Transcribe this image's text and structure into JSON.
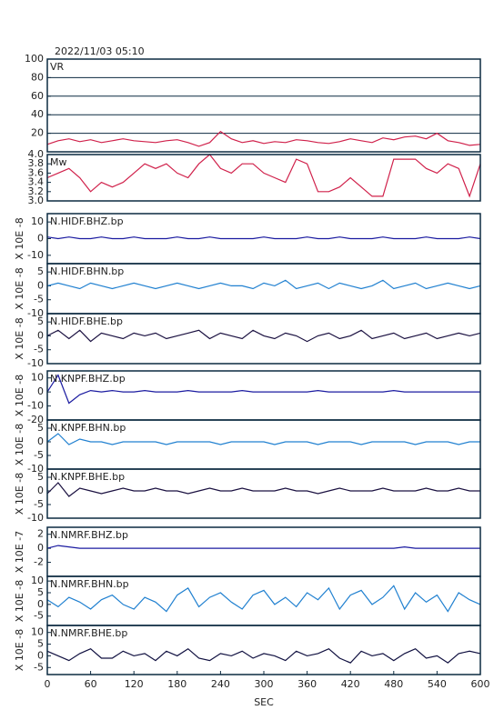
{
  "title": "2022/11/03 05:10",
  "chart_data": [
    {
      "type": "line",
      "title": "VR",
      "xlim": [
        0,
        600
      ],
      "ylim": [
        0,
        100
      ],
      "yticks": [
        20,
        40,
        60,
        80,
        100
      ],
      "grid": true,
      "x": [
        0,
        15,
        30,
        45,
        60,
        75,
        90,
        105,
        120,
        135,
        150,
        165,
        180,
        195,
        210,
        225,
        240,
        255,
        270,
        285,
        300,
        315,
        330,
        345,
        360,
        375,
        390,
        405,
        420,
        435,
        450,
        465,
        480,
        495,
        510,
        525,
        540,
        555,
        570,
        585,
        600
      ],
      "series": [
        {
          "color": "#d0204a",
          "values": [
            8,
            12,
            14,
            11,
            13,
            10,
            12,
            14,
            12,
            11,
            10,
            12,
            13,
            10,
            6,
            10,
            22,
            14,
            10,
            12,
            9,
            11,
            10,
            13,
            12,
            10,
            9,
            11,
            14,
            12,
            10,
            15,
            13,
            16,
            17,
            14,
            20,
            12,
            10,
            7,
            8
          ]
        }
      ]
    },
    {
      "type": "line",
      "title": "Mw",
      "xlim": [
        0,
        600
      ],
      "ylim": [
        3,
        4
      ],
      "yticks": [
        {
          "value": 3,
          "label": "3.0"
        },
        3.2,
        3.4,
        3.6,
        3.8,
        {
          "value": 4,
          "label": "4.0"
        }
      ],
      "grid": false,
      "x": [
        0,
        15,
        30,
        45,
        60,
        75,
        90,
        105,
        120,
        135,
        150,
        165,
        180,
        195,
        210,
        225,
        240,
        255,
        270,
        285,
        300,
        315,
        330,
        345,
        360,
        375,
        390,
        405,
        420,
        435,
        450,
        465,
        480,
        495,
        510,
        525,
        540,
        555,
        570,
        585,
        600
      ],
      "series": [
        {
          "color": "#d0204a",
          "values": [
            3.5,
            3.6,
            3.7,
            3.5,
            3.2,
            3.4,
            3.3,
            3.4,
            3.6,
            3.8,
            3.7,
            3.8,
            3.6,
            3.5,
            3.8,
            4.0,
            3.7,
            3.6,
            3.8,
            3.8,
            3.6,
            3.5,
            3.4,
            3.9,
            3.8,
            3.2,
            3.2,
            3.3,
            3.5,
            3.3,
            3.1,
            3.1,
            3.9,
            3.9,
            3.9,
            3.7,
            3.6,
            3.8,
            3.7,
            3.1,
            3.8
          ]
        }
      ]
    },
    {
      "type": "line",
      "title": "N.HIDF.BHZ.bp",
      "ylabel": "X 10E -8",
      "xlim": [
        0,
        600
      ],
      "ylim": [
        -15,
        15
      ],
      "yticks": [
        -10,
        0,
        10
      ],
      "grid": false,
      "x": [
        0,
        15,
        30,
        45,
        60,
        75,
        90,
        105,
        120,
        135,
        150,
        165,
        180,
        195,
        210,
        225,
        240,
        255,
        270,
        285,
        300,
        315,
        330,
        345,
        360,
        375,
        390,
        405,
        420,
        435,
        450,
        465,
        480,
        495,
        510,
        525,
        540,
        555,
        570,
        585,
        600
      ],
      "series": [
        {
          "color": "#1a1aa0",
          "values": [
            1,
            0,
            1,
            0,
            0,
            1,
            0,
            0,
            1,
            0,
            0,
            0,
            1,
            0,
            0,
            1,
            0,
            0,
            0,
            0,
            1,
            0,
            0,
            0,
            1,
            0,
            0,
            1,
            0,
            0,
            0,
            1,
            0,
            0,
            0,
            1,
            0,
            0,
            0,
            1,
            0
          ]
        }
      ]
    },
    {
      "type": "line",
      "title": "N.HIDF.BHN.bp",
      "ylabel": "X 10E -8",
      "xlim": [
        0,
        600
      ],
      "ylim": [
        -10,
        8
      ],
      "yticks": [
        -10,
        -5,
        0,
        5
      ],
      "grid": false,
      "x": [
        0,
        15,
        30,
        45,
        60,
        75,
        90,
        105,
        120,
        135,
        150,
        165,
        180,
        195,
        210,
        225,
        240,
        255,
        270,
        285,
        300,
        315,
        330,
        345,
        360,
        375,
        390,
        405,
        420,
        435,
        450,
        465,
        480,
        495,
        510,
        525,
        540,
        555,
        570,
        585,
        600
      ],
      "series": [
        {
          "color": "#2080d0",
          "values": [
            0,
            1,
            0,
            -1,
            1,
            0,
            -1,
            0,
            1,
            0,
            -1,
            0,
            1,
            0,
            -1,
            0,
            1,
            0,
            0,
            -1,
            1,
            0,
            2,
            -1,
            0,
            1,
            -1,
            1,
            0,
            -1,
            0,
            2,
            -1,
            0,
            1,
            -1,
            0,
            1,
            0,
            -1,
            0
          ]
        }
      ]
    },
    {
      "type": "line",
      "title": "N.HIDF.BHE.bp",
      "ylabel": "X 10E -8",
      "xlim": [
        0,
        600
      ],
      "ylim": [
        -10,
        8
      ],
      "yticks": [
        -10,
        -5,
        0,
        5
      ],
      "grid": false,
      "x": [
        0,
        15,
        30,
        45,
        60,
        75,
        90,
        105,
        120,
        135,
        150,
        165,
        180,
        195,
        210,
        225,
        240,
        255,
        270,
        285,
        300,
        315,
        330,
        345,
        360,
        375,
        390,
        405,
        420,
        435,
        450,
        465,
        480,
        495,
        510,
        525,
        540,
        555,
        570,
        585,
        600
      ],
      "series": [
        {
          "color": "#1a1040",
          "values": [
            0,
            2,
            -1,
            2,
            -2,
            1,
            0,
            -1,
            1,
            0,
            1,
            -1,
            0,
            1,
            2,
            -1,
            1,
            0,
            -1,
            2,
            0,
            -1,
            1,
            0,
            -2,
            0,
            1,
            -1,
            0,
            2,
            -1,
            0,
            1,
            -1,
            0,
            1,
            -1,
            0,
            1,
            0,
            1
          ]
        }
      ]
    },
    {
      "type": "line",
      "title": "N.KNPF.BHZ.bp",
      "ylabel": "X 10E -8",
      "xlim": [
        0,
        600
      ],
      "ylim": [
        -20,
        15
      ],
      "yticks": [
        -20,
        -10,
        0,
        10
      ],
      "grid": false,
      "x": [
        0,
        15,
        30,
        45,
        60,
        75,
        90,
        105,
        120,
        135,
        150,
        165,
        180,
        195,
        210,
        225,
        240,
        255,
        270,
        285,
        300,
        315,
        330,
        345,
        360,
        375,
        390,
        405,
        420,
        435,
        450,
        465,
        480,
        495,
        510,
        525,
        540,
        555,
        570,
        585,
        600
      ],
      "series": [
        {
          "color": "#1a1aa0",
          "values": [
            0,
            12,
            -8,
            -2,
            1,
            0,
            1,
            0,
            0,
            1,
            0,
            0,
            0,
            1,
            0,
            0,
            0,
            0,
            1,
            0,
            0,
            0,
            0,
            0,
            0,
            1,
            0,
            0,
            0,
            0,
            0,
            0,
            1,
            0,
            0,
            0,
            0,
            0,
            0,
            0,
            0
          ]
        }
      ]
    },
    {
      "type": "line",
      "title": "N.KNPF.BHN.bp",
      "ylabel": "X 10E -8",
      "xlim": [
        0,
        600
      ],
      "ylim": [
        -10,
        8
      ],
      "yticks": [
        -10,
        -5,
        0,
        5
      ],
      "grid": false,
      "x": [
        0,
        15,
        30,
        45,
        60,
        75,
        90,
        105,
        120,
        135,
        150,
        165,
        180,
        195,
        210,
        225,
        240,
        255,
        270,
        285,
        300,
        315,
        330,
        345,
        360,
        375,
        390,
        405,
        420,
        435,
        450,
        465,
        480,
        495,
        510,
        525,
        540,
        555,
        570,
        585,
        600
      ],
      "series": [
        {
          "color": "#2080d0",
          "values": [
            0,
            3,
            -1,
            1,
            0,
            0,
            -1,
            0,
            0,
            0,
            0,
            -1,
            0,
            0,
            0,
            0,
            -1,
            0,
            0,
            0,
            0,
            -1,
            0,
            0,
            0,
            -1,
            0,
            0,
            0,
            -1,
            0,
            0,
            0,
            0,
            -1,
            0,
            0,
            0,
            -1,
            0,
            0
          ]
        }
      ]
    },
    {
      "type": "line",
      "title": "N.KNPF.BHE.bp",
      "ylabel": "X 10E -8",
      "xlim": [
        0,
        600
      ],
      "ylim": [
        -10,
        8
      ],
      "yticks": [
        -10,
        -5,
        0,
        5
      ],
      "grid": false,
      "x": [
        0,
        15,
        30,
        45,
        60,
        75,
        90,
        105,
        120,
        135,
        150,
        165,
        180,
        195,
        210,
        225,
        240,
        255,
        270,
        285,
        300,
        315,
        330,
        345,
        360,
        375,
        390,
        405,
        420,
        435,
        450,
        465,
        480,
        495,
        510,
        525,
        540,
        555,
        570,
        585,
        600
      ],
      "series": [
        {
          "color": "#1a1040",
          "values": [
            -1,
            3,
            -2,
            1,
            0,
            -1,
            0,
            1,
            0,
            0,
            1,
            0,
            0,
            -1,
            0,
            1,
            0,
            0,
            1,
            0,
            0,
            0,
            1,
            0,
            0,
            -1,
            0,
            1,
            0,
            0,
            0,
            1,
            0,
            0,
            0,
            1,
            0,
            0,
            1,
            0,
            0
          ]
        }
      ]
    },
    {
      "type": "line",
      "title": "N.NMRF.BHZ.bp",
      "ylabel": "X 10E -7",
      "xlim": [
        0,
        600
      ],
      "ylim": [
        -4,
        3
      ],
      "yticks": [
        -2,
        0,
        2
      ],
      "grid": false,
      "x": [
        0,
        15,
        30,
        45,
        60,
        75,
        90,
        105,
        120,
        135,
        150,
        165,
        180,
        195,
        210,
        225,
        240,
        255,
        270,
        285,
        300,
        315,
        330,
        345,
        360,
        375,
        390,
        405,
        420,
        435,
        450,
        465,
        480,
        495,
        510,
        525,
        540,
        555,
        570,
        585,
        600
      ],
      "series": [
        {
          "color": "#1a1aa0",
          "values": [
            0,
            0.4,
            0.2,
            0,
            0,
            0,
            0,
            0,
            0,
            0,
            0,
            0,
            0,
            0,
            0,
            0,
            0,
            0,
            0,
            0,
            0,
            0,
            0,
            0,
            0,
            0,
            0,
            0,
            0,
            0,
            0,
            0,
            0,
            0.2,
            0,
            0,
            0,
            0,
            0,
            0,
            0
          ]
        }
      ]
    },
    {
      "type": "line",
      "title": "N.NMRF.BHN.bp",
      "ylabel": "X 10E -8",
      "xlim": [
        0,
        600
      ],
      "ylim": [
        -9,
        12
      ],
      "yticks": [
        -5,
        0,
        5,
        10
      ],
      "grid": false,
      "x": [
        0,
        15,
        30,
        45,
        60,
        75,
        90,
        105,
        120,
        135,
        150,
        165,
        180,
        195,
        210,
        225,
        240,
        255,
        270,
        285,
        300,
        315,
        330,
        345,
        360,
        375,
        390,
        405,
        420,
        435,
        450,
        465,
        480,
        495,
        510,
        525,
        540,
        555,
        570,
        585,
        600
      ],
      "series": [
        {
          "color": "#2080d0",
          "values": [
            2,
            -1,
            3,
            1,
            -2,
            2,
            4,
            0,
            -2,
            3,
            1,
            -3,
            4,
            7,
            -1,
            3,
            5,
            1,
            -2,
            4,
            6,
            0,
            3,
            -1,
            5,
            2,
            7,
            -2,
            4,
            6,
            0,
            3,
            8,
            -2,
            5,
            1,
            4,
            -3,
            5,
            2,
            0
          ]
        }
      ]
    },
    {
      "type": "line",
      "title": "N.NMRF.BHE.bp",
      "ylabel": "X 10E -8",
      "xlabel": "SEC",
      "xlim": [
        0,
        600
      ],
      "ylim": [
        -8,
        13
      ],
      "yticks": [
        -5,
        0,
        5,
        10
      ],
      "xticks": [
        0,
        60,
        120,
        180,
        240,
        300,
        360,
        420,
        480,
        540,
        600
      ],
      "grid": false,
      "x": [
        0,
        15,
        30,
        45,
        60,
        75,
        90,
        105,
        120,
        135,
        150,
        165,
        180,
        195,
        210,
        225,
        240,
        255,
        270,
        285,
        300,
        315,
        330,
        345,
        360,
        375,
        390,
        405,
        420,
        435,
        450,
        465,
        480,
        495,
        510,
        525,
        540,
        555,
        570,
        585,
        600
      ],
      "series": [
        {
          "color": "#101040",
          "values": [
            2,
            0,
            -2,
            1,
            3,
            -1,
            -1,
            2,
            0,
            1,
            -2,
            2,
            0,
            3,
            -1,
            -2,
            1,
            0,
            2,
            -1,
            1,
            0,
            -2,
            2,
            0,
            1,
            3,
            -1,
            -3,
            2,
            0,
            1,
            -2,
            1,
            3,
            -1,
            0,
            -3,
            1,
            2,
            1
          ]
        }
      ]
    }
  ]
}
